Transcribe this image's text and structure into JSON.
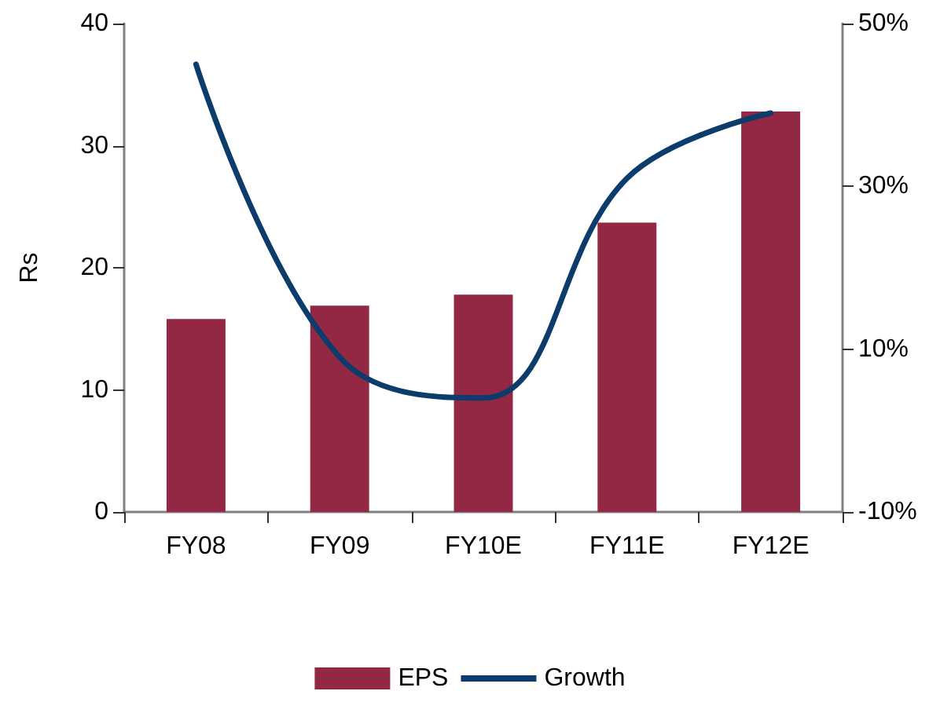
{
  "chart_data": {
    "type": "bar",
    "categories": [
      "FY08",
      "FY09",
      "FY10E",
      "FY11E",
      "FY12E"
    ],
    "series": [
      {
        "name": "EPS",
        "color": "#922843",
        "values": [
          15.8,
          16.9,
          17.8,
          23.7,
          32.8
        ]
      },
      {
        "name": "Growth",
        "type": "line",
        "axis": "y2",
        "color": "#0b3c6b",
        "values": [
          45,
          9,
          4,
          31,
          39
        ]
      }
    ],
    "ylabel": "Rs",
    "ylim": [
      0,
      40
    ],
    "yticks": [
      0,
      10,
      20,
      30,
      40
    ],
    "y2lim": [
      -10,
      50
    ],
    "y2ticks": [
      {
        "value": -10,
        "label": "-10%"
      },
      {
        "value": 10,
        "label": "10%"
      },
      {
        "value": 30,
        "label": "30%"
      },
      {
        "value": 50,
        "label": "50%"
      }
    ],
    "legend": "bottom",
    "grid": false,
    "marker": "none",
    "line_style": "solid"
  }
}
